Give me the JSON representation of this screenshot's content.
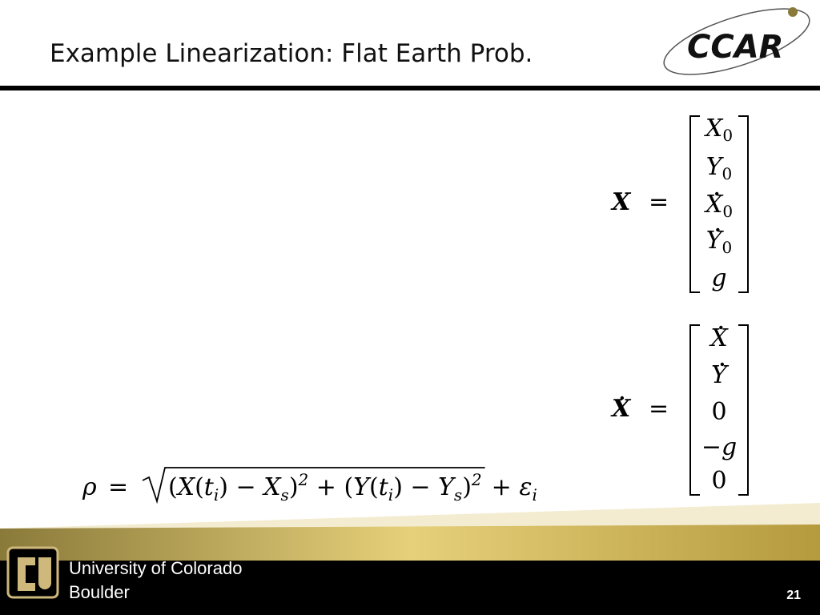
{
  "header": {
    "title": "Example Linearization: Flat Earth Prob.",
    "logo": "CCAR"
  },
  "equations": {
    "state": {
      "lhs": "X",
      "eq": "=",
      "entries": [
        {
          "base": "X",
          "sub": "0"
        },
        {
          "base": "Y",
          "sub": "0"
        },
        {
          "base": "X",
          "sub": "0",
          "dot": true
        },
        {
          "base": "Y",
          "sub": "0",
          "dot": true
        },
        {
          "base": "g"
        }
      ]
    },
    "derivative": {
      "lhs": "X",
      "lhs_dot": true,
      "eq": "=",
      "entries": [
        {
          "base": "X",
          "dot": true
        },
        {
          "base": "Y",
          "dot": true
        },
        {
          "base": "0"
        },
        {
          "base": "−g"
        },
        {
          "base": "0"
        }
      ]
    },
    "range": {
      "lhs": "ρ",
      "eq": "=",
      "radicand": [
        {
          "t": "(X(t"
        },
        {
          "sub": "i"
        },
        {
          "t": ") − X"
        },
        {
          "sub": "s"
        },
        {
          "t": ")"
        },
        {
          "sup": "2"
        },
        {
          "t": " + (Y(t"
        },
        {
          "sub": "i"
        },
        {
          "t": ") − Y"
        },
        {
          "sub": "s"
        },
        {
          "t": ")"
        },
        {
          "sup": "2"
        }
      ],
      "tail": [
        {
          "t": "+ ε"
        },
        {
          "sub": "i"
        }
      ]
    }
  },
  "footer": {
    "institution": "University of Colorado",
    "campus": "Boulder",
    "page": "21"
  }
}
